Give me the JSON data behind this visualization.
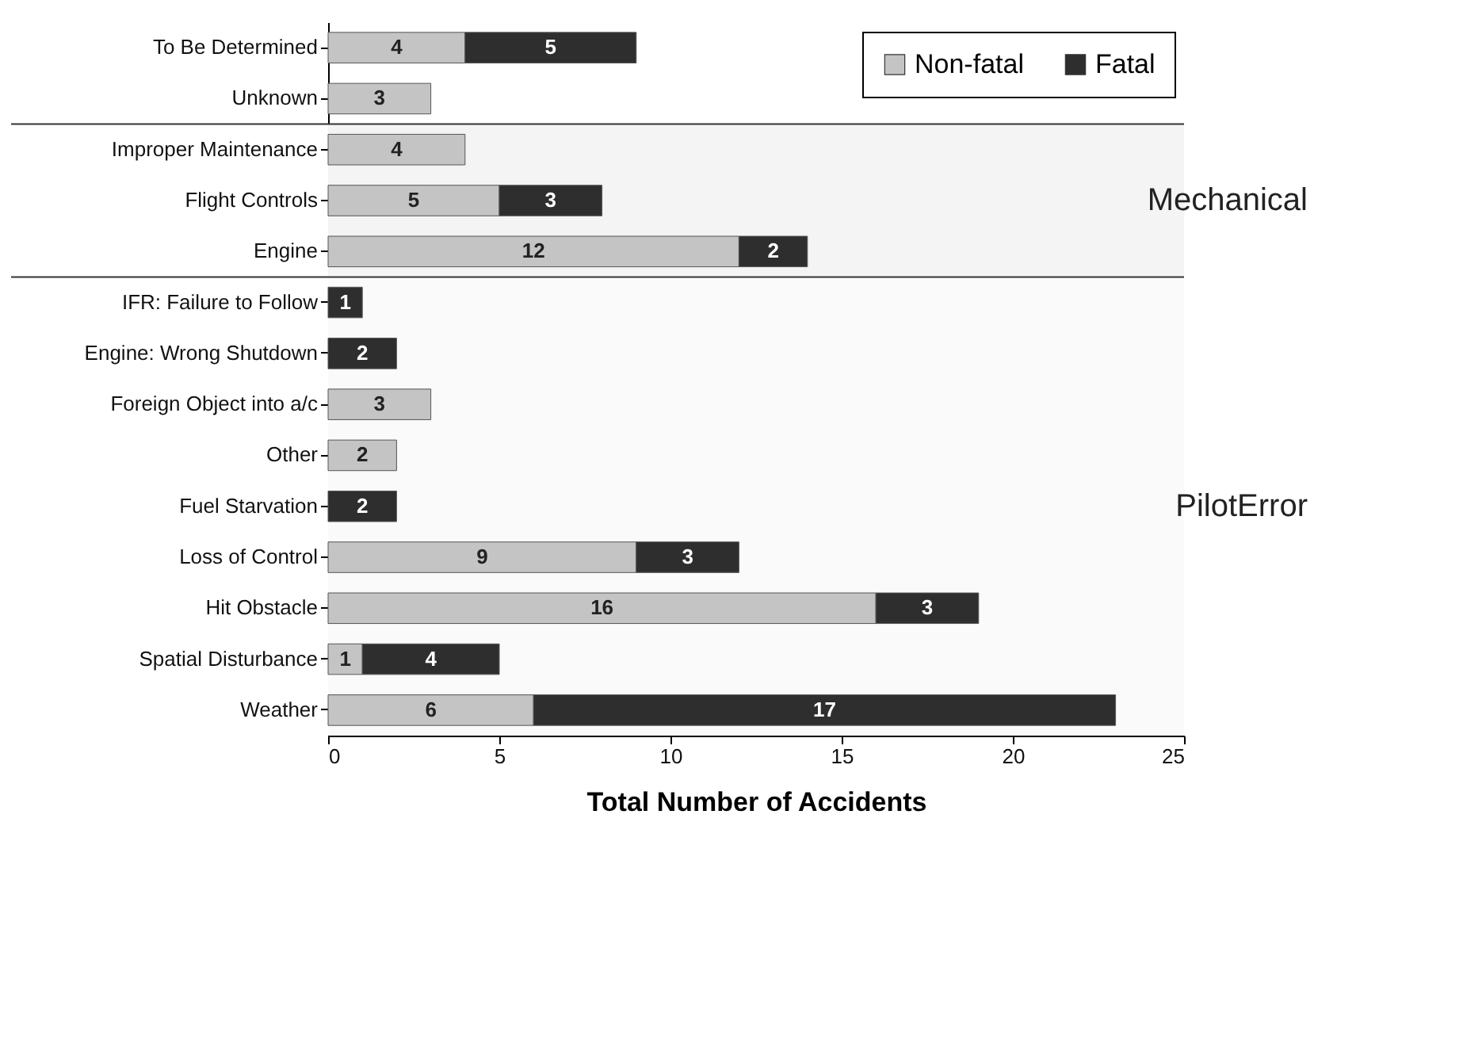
{
  "chart_data": {
    "type": "bar",
    "orientation": "horizontal",
    "stacked": true,
    "categories": [
      "To Be Determined",
      "Unknown",
      "Improper Maintenance",
      "Flight Controls",
      "Engine",
      "IFR: Failure to Follow",
      "Engine: Wrong Shutdown",
      "Foreign Object into a/c",
      "Other",
      "Fuel Starvation",
      "Loss of Control",
      "Hit Obstacle",
      "Spatial Disturbance",
      "Weather"
    ],
    "series": [
      {
        "name": "Non-fatal",
        "color": "#c4c4c4",
        "values": [
          4,
          3,
          4,
          5,
          12,
          null,
          null,
          3,
          2,
          null,
          9,
          16,
          1,
          6
        ]
      },
      {
        "name": "Fatal",
        "color": "#2e2e2e",
        "values": [
          5,
          null,
          null,
          3,
          2,
          1,
          2,
          null,
          null,
          2,
          3,
          3,
          4,
          17
        ]
      }
    ],
    "xlim": [
      0,
      25
    ],
    "xticks": [
      0,
      5,
      10,
      15,
      20,
      25
    ],
    "xlabel": "Total Number of Accidents",
    "bands": [
      {
        "axis": "y",
        "from": "Improper Maintenance",
        "to": "Engine",
        "label": "Mechanical",
        "color": "#f4f4f4"
      },
      {
        "axis": "y",
        "from": "IFR: Failure to Follow",
        "to": "Weather",
        "label": "PilotError",
        "color": "#fafafa"
      }
    ],
    "data_labels": true,
    "legend": "top right",
    "grid": false
  }
}
